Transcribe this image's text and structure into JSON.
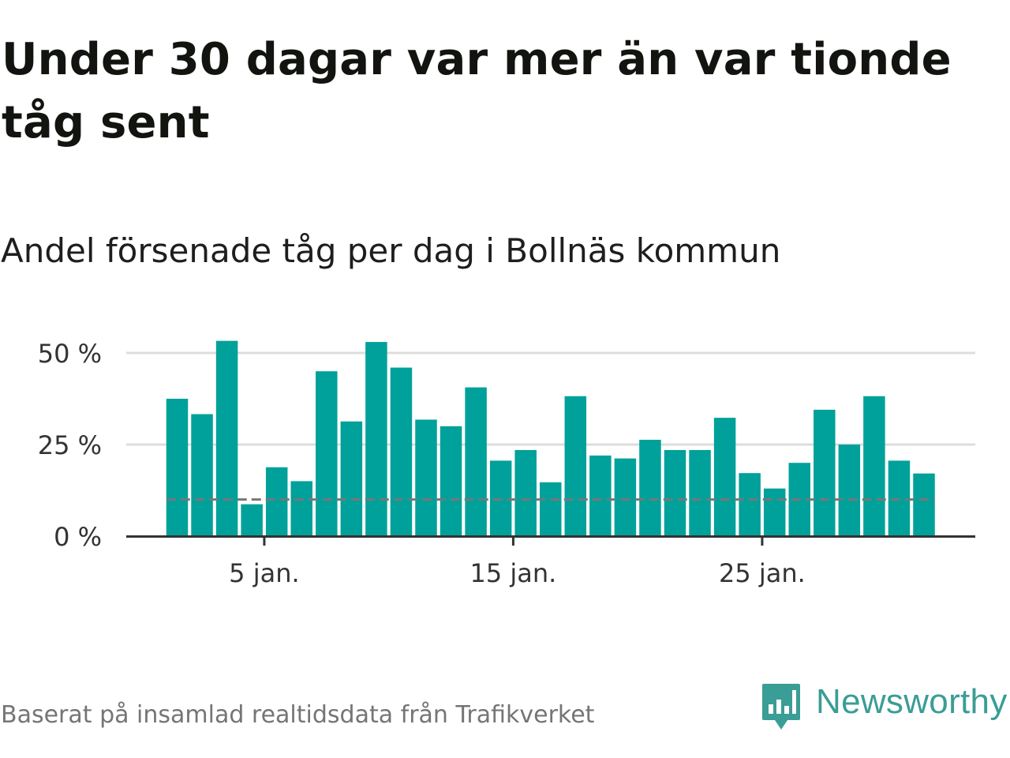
{
  "headline": "Under 30 dagar var mer än var tionde tåg sent",
  "colors": {
    "bar": "#00a19a",
    "reference_line": "#777777",
    "gridline": "#dddddd",
    "axis": "#333333",
    "brand": "#3a9d96"
  },
  "chart_data": {
    "type": "bar",
    "title": "Andel försenade tåg per dag i Bollnäs kommun",
    "xlabel": "",
    "ylabel": "",
    "x": [
      1,
      2,
      3,
      4,
      5,
      6,
      7,
      8,
      9,
      10,
      11,
      12,
      13,
      14,
      15,
      16,
      17,
      18,
      19,
      20,
      21,
      22,
      23,
      24,
      25,
      26,
      27,
      28,
      29,
      30,
      31
    ],
    "values": [
      37.5,
      33.3,
      53.3,
      8.7,
      18.8,
      15.0,
      45.0,
      31.3,
      53.0,
      46.0,
      31.8,
      30.0,
      40.6,
      20.6,
      23.5,
      14.7,
      38.2,
      22.0,
      21.2,
      26.3,
      23.5,
      23.5,
      32.3,
      17.2,
      13.0,
      20.0,
      34.5,
      25.0,
      38.2,
      20.6,
      17.1
    ],
    "value_unit": "%",
    "reference_line": 10,
    "ylim": [
      0,
      50
    ],
    "yticks": [
      {
        "value": 0,
        "label": "0 %"
      },
      {
        "value": 25,
        "label": "25 %"
      },
      {
        "value": 50,
        "label": "50 %"
      }
    ],
    "xticks": [
      {
        "value": 5,
        "label": "5 jan."
      },
      {
        "value": 15,
        "label": "15 jan."
      },
      {
        "value": 25,
        "label": "25 jan."
      }
    ],
    "grid": true
  },
  "footer": {
    "source": "Baserat på insamlad realtidsdata från Trafikverket",
    "brand": "Newsworthy",
    "brand_icon": "newsworthy-logo-icon"
  }
}
